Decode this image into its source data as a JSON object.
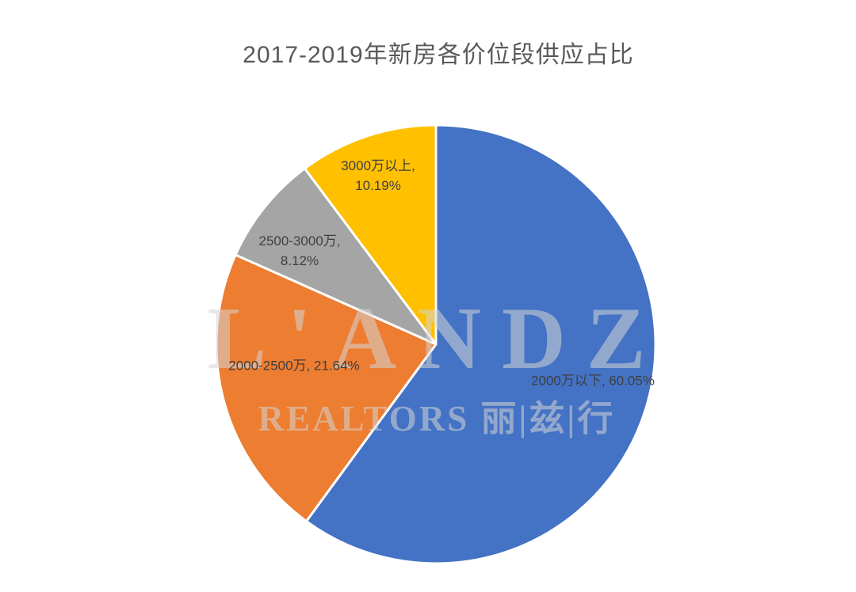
{
  "chart_data": {
    "type": "pie",
    "title": "2017-2019年新房各价位段供应占比",
    "unit": "%",
    "start_angle_deg": 0,
    "direction": "clockwise",
    "legend": "none",
    "data_labels": "category-and-percent-inside",
    "slices": [
      {
        "category": "2000万以下",
        "value": 60.05,
        "color": "#4472C4",
        "label_lines": [
          "2000万以下, 60.05%"
        ]
      },
      {
        "category": "2000-2500万",
        "value": 21.64,
        "color": "#ED7D31",
        "label_lines": [
          "2000-2500万, 21.64%"
        ]
      },
      {
        "category": "2500-3000万",
        "value": 8.12,
        "color": "#A5A5A5",
        "label_lines": [
          "2500-3000万,",
          "8.12%"
        ]
      },
      {
        "category": "3000万以上",
        "value": 10.19,
        "color": "#FFC000",
        "label_lines": [
          "3000万以上,",
          "10.19%"
        ]
      }
    ]
  },
  "watermark": {
    "line1": "L'ANDZ",
    "line2": "REALTORS 丽|兹|行"
  },
  "styles": {
    "title_color": "#595959",
    "label_color": "#3f3f3f",
    "slice_border_color": "#ffffff",
    "background": "#ffffff"
  }
}
